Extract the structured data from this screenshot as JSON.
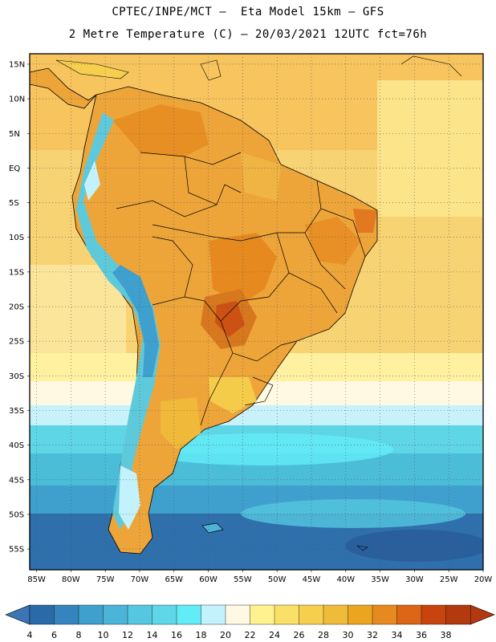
{
  "header": {
    "line1": "CPTEC/INPE/MCT –  Eta Model 15km – GFS",
    "line2": "2 Metre Temperature (C) – 20/03/2021 12UTC fct=76h"
  },
  "map": {
    "lat_ticks": [
      "15N",
      "10N",
      "5N",
      "EQ",
      "5S",
      "10S",
      "15S",
      "20S",
      "25S",
      "30S",
      "35S",
      "40S",
      "45S",
      "50S",
      "55S"
    ],
    "lon_ticks": [
      "85W",
      "80W",
      "75W",
      "70W",
      "65W",
      "60W",
      "55W",
      "50W",
      "45W",
      "40W",
      "35W",
      "30W",
      "25W",
      "20W"
    ],
    "lat_range": [
      -58,
      16.5
    ],
    "lon_range": [
      -86,
      -20
    ],
    "gridlines": "dotted"
  },
  "colorbar": {
    "labels": [
      "4",
      "6",
      "8",
      "10",
      "12",
      "14",
      "16",
      "18",
      "20",
      "22",
      "24",
      "26",
      "28",
      "30",
      "32",
      "34",
      "36",
      "38"
    ],
    "colors": [
      "#2a6aa9",
      "#3584c0",
      "#3fa0cd",
      "#4bb4d8",
      "#55c7e0",
      "#5ed8e8",
      "#62ecf8",
      "#c4f2fc",
      "#fff8e3",
      "#fff28f",
      "#fbe068",
      "#f5cf4d",
      "#efbb3a",
      "#eba521",
      "#e68a1f",
      "#dd6516",
      "#c8440f",
      "#b23a0e"
    ],
    "extend_left_color": "#3b75b6",
    "extend_right_color": "#b23a0e"
  },
  "legend_colors": {
    "ocean_south": "#2f6fab",
    "ocean_mid": "#4fc5dc",
    "warm_land": "#eda53a",
    "hot_land": "#d7781f",
    "andes_cold": "#5fc9dc"
  }
}
